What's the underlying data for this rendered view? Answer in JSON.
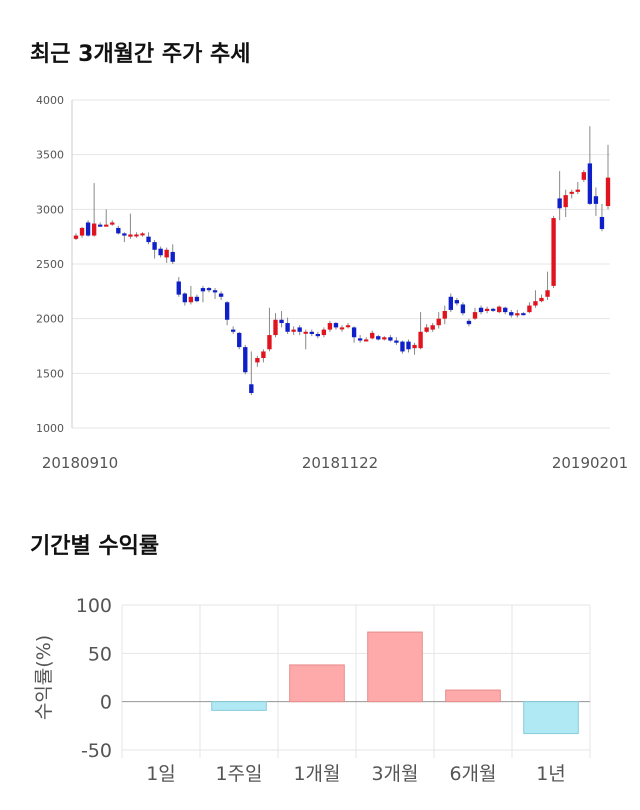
{
  "page": {
    "price_title": "최근 3개월간 주가 추세",
    "returns_title": "기간별 수익률"
  },
  "colors": {
    "up": "#e0141e",
    "down": "#1020c8",
    "positive_bar": "#ffaaaa",
    "negative_bar": "#b0e8f4",
    "grid": "#e6e6e6"
  },
  "chart_data": [
    {
      "type": "candlestick",
      "title": "최근 3개월간 주가 추세",
      "ylim": [
        1000,
        4000
      ],
      "y_ticks": [
        "4000",
        "3500",
        "3000",
        "2500",
        "2000",
        "1500",
        "1000"
      ],
      "x_ticks": [
        "20180910",
        "20181122",
        "20190201"
      ],
      "candles": [
        [
          2730,
          2760,
          2720,
          2780
        ],
        [
          2760,
          2830,
          2740,
          2840
        ],
        [
          2880,
          2760,
          2750,
          2900
        ],
        [
          2760,
          2870,
          2750,
          3240
        ],
        [
          2860,
          2850,
          2840,
          2880
        ],
        [
          2850,
          2860,
          2840,
          3000
        ],
        [
          2860,
          2880,
          2850,
          2900
        ],
        [
          2830,
          2780,
          2770,
          2850
        ],
        [
          2780,
          2760,
          2700,
          2790
        ],
        [
          2750,
          2770,
          2730,
          2960
        ],
        [
          2770,
          2770,
          2740,
          2790
        ],
        [
          2770,
          2780,
          2750,
          2790
        ],
        [
          2750,
          2700,
          2680,
          2790
        ],
        [
          2700,
          2630,
          2550,
          2720
        ],
        [
          2640,
          2580,
          2560,
          2660
        ],
        [
          2560,
          2630,
          2510,
          2650
        ],
        [
          2610,
          2520,
          2500,
          2680
        ],
        [
          2340,
          2220,
          2200,
          2380
        ],
        [
          2230,
          2150,
          2120,
          2240
        ],
        [
          2150,
          2200,
          2130,
          2300
        ],
        [
          2200,
          2160,
          2150,
          2220
        ],
        [
          2280,
          2250,
          2150,
          2300
        ],
        [
          2280,
          2260,
          2240,
          2290
        ],
        [
          2260,
          2240,
          2180,
          2280
        ],
        [
          2230,
          2200,
          2170,
          2250
        ],
        [
          2150,
          1990,
          1940,
          2160
        ],
        [
          1900,
          1880,
          1860,
          1930
        ],
        [
          1870,
          1740,
          1720,
          1880
        ],
        [
          1740,
          1510,
          1490,
          1760
        ],
        [
          1400,
          1320,
          1300,
          1700
        ],
        [
          1600,
          1640,
          1560,
          1660
        ],
        [
          1640,
          1700,
          1600,
          1720
        ],
        [
          1720,
          1850,
          1700,
          2100
        ],
        [
          1850,
          1990,
          1830,
          2050
        ],
        [
          1990,
          1960,
          1920,
          2070
        ],
        [
          1960,
          1880,
          1860,
          2010
        ],
        [
          1880,
          1900,
          1850,
          1930
        ],
        [
          1920,
          1880,
          1850,
          1940
        ],
        [
          1880,
          1880,
          1720,
          1900
        ],
        [
          1880,
          1860,
          1840,
          1900
        ],
        [
          1860,
          1840,
          1820,
          1880
        ],
        [
          1850,
          1900,
          1830,
          1920
        ],
        [
          1900,
          1960,
          1880,
          1980
        ],
        [
          1960,
          1920,
          1900,
          1970
        ],
        [
          1920,
          1920,
          1880,
          1940
        ],
        [
          1930,
          1940,
          1910,
          1960
        ],
        [
          1920,
          1830,
          1780,
          1930
        ],
        [
          1820,
          1800,
          1780,
          1850
        ],
        [
          1800,
          1810,
          1790,
          1830
        ],
        [
          1820,
          1870,
          1810,
          1890
        ],
        [
          1840,
          1810,
          1800,
          1850
        ],
        [
          1810,
          1830,
          1800,
          1840
        ],
        [
          1830,
          1800,
          1790,
          1850
        ],
        [
          1800,
          1780,
          1760,
          1830
        ],
        [
          1790,
          1700,
          1680,
          1800
        ],
        [
          1790,
          1720,
          1690,
          1810
        ],
        [
          1730,
          1760,
          1670,
          1780
        ],
        [
          1730,
          1880,
          1720,
          2060
        ],
        [
          1880,
          1920,
          1870,
          1950
        ],
        [
          1900,
          1940,
          1880,
          1960
        ],
        [
          1940,
          2000,
          1910,
          2060
        ],
        [
          2000,
          2070,
          1950,
          2120
        ],
        [
          2200,
          2080,
          2060,
          2230
        ],
        [
          2170,
          2140,
          2120,
          2190
        ],
        [
          2130,
          2050,
          2030,
          2150
        ],
        [
          1980,
          1950,
          1930,
          2000
        ],
        [
          2000,
          2060,
          1990,
          2100
        ],
        [
          2100,
          2060,
          2040,
          2120
        ],
        [
          2070,
          2090,
          2050,
          2110
        ],
        [
          2090,
          2080,
          2060,
          2100
        ],
        [
          2060,
          2110,
          2050,
          2120
        ],
        [
          2100,
          2060,
          2040,
          2110
        ],
        [
          2060,
          2030,
          2010,
          2080
        ],
        [
          2030,
          2050,
          2010,
          2080
        ],
        [
          2050,
          2040,
          2030,
          2060
        ],
        [
          2060,
          2120,
          2050,
          2150
        ],
        [
          2120,
          2160,
          2100,
          2260
        ],
        [
          2160,
          2190,
          2150,
          2220
        ],
        [
          2200,
          2260,
          2170,
          2430
        ],
        [
          2300,
          2920,
          2280,
          2940
        ],
        [
          3100,
          3010,
          2900,
          3350
        ],
        [
          3020,
          3130,
          2930,
          3180
        ],
        [
          3150,
          3160,
          3100,
          3180
        ],
        [
          3160,
          3180,
          3140,
          3250
        ],
        [
          3270,
          3340,
          3250,
          3360
        ],
        [
          3420,
          3050,
          3040,
          3760
        ],
        [
          3120,
          3050,
          2940,
          3200
        ],
        [
          2930,
          2820,
          2800,
          3050
        ],
        [
          3030,
          3290,
          3000,
          3590
        ]
      ]
    },
    {
      "type": "bar",
      "title": "기간별 수익률",
      "ylabel": "수익률(%)",
      "ylim": [
        -50,
        100
      ],
      "y_ticks": [
        100,
        50,
        0,
        -50
      ],
      "categories": [
        "1일",
        "1주일",
        "1개월",
        "3개월",
        "6개월",
        "1년"
      ],
      "values": [
        0,
        -9,
        38,
        72,
        12,
        -33
      ]
    }
  ]
}
